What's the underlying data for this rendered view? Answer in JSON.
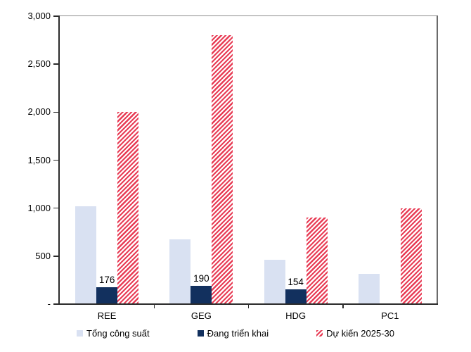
{
  "chart_data": {
    "type": "bar",
    "title": "",
    "categories": [
      "REE",
      "GEG",
      "HDG",
      "PC1"
    ],
    "series": [
      {
        "name": "Tổng công suất",
        "color": "#d9e1f2",
        "pattern": "solid",
        "values": [
          1020,
          675,
          465,
          315
        ]
      },
      {
        "name": "Đang triển khai",
        "color": "#12305e",
        "pattern": "solid",
        "values": [
          176,
          190,
          154,
          0
        ],
        "data_labels": [
          "176",
          "190",
          "154",
          ""
        ]
      },
      {
        "name": "Dự kiến 2025-30",
        "color": "#e83c55",
        "pattern": "diagonal-hatch",
        "values": [
          2000,
          2800,
          900,
          1000
        ]
      }
    ],
    "xlabel": "",
    "ylabel": "",
    "ylim": [
      0,
      3000
    ],
    "y_axis": {
      "min": 0,
      "max": 3000,
      "tick_interval": 500,
      "tick_labels": [
        "3,000",
        "2,500",
        "2,000",
        "1,500",
        "1,000",
        "500",
        "-"
      ]
    },
    "grid": false,
    "legend_position": "bottom"
  }
}
